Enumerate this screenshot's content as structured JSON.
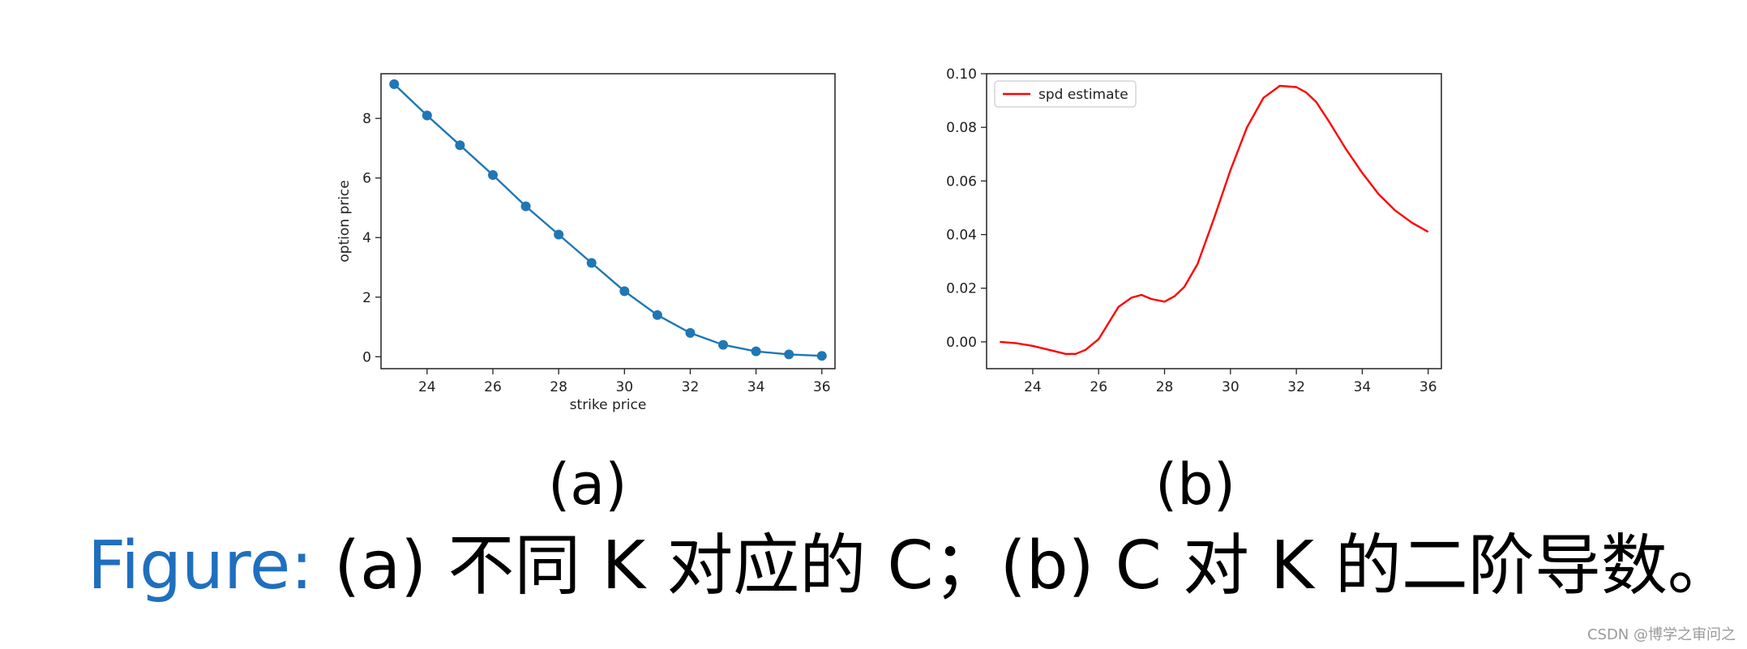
{
  "chart_data": [
    {
      "type": "line",
      "panel_label": "(a)",
      "title": "",
      "xlabel": "strike price",
      "ylabel": "option price",
      "xlim": [
        22.6,
        36.4
      ],
      "ylim": [
        -0.4,
        9.5
      ],
      "xticks": [
        24,
        26,
        28,
        30,
        32,
        34,
        36
      ],
      "yticks": [
        0,
        2,
        4,
        6,
        8
      ],
      "grid": false,
      "markers": true,
      "series": [
        {
          "color": "#1f77b4",
          "x": [
            23,
            24,
            25,
            26,
            27,
            28,
            29,
            30,
            31,
            32,
            33,
            34,
            35,
            36
          ],
          "y": [
            9.15,
            8.1,
            7.1,
            6.1,
            5.05,
            4.1,
            3.15,
            2.2,
            1.4,
            0.8,
            0.4,
            0.18,
            0.08,
            0.03
          ]
        }
      ]
    },
    {
      "type": "line",
      "panel_label": "(b)",
      "title": "",
      "xlabel": "",
      "ylabel": "",
      "xlim": [
        22.6,
        36.4
      ],
      "ylim": [
        -0.01,
        0.1
      ],
      "xticks": [
        24,
        26,
        28,
        30,
        32,
        34,
        36
      ],
      "yticks": [
        0.0,
        0.02,
        0.04,
        0.06,
        0.08,
        0.1
      ],
      "ytick_labels": [
        "0.00",
        "0.02",
        "0.04",
        "0.06",
        "0.08",
        "0.10"
      ],
      "grid": false,
      "markers": false,
      "legend": "top-left",
      "series": [
        {
          "name": "spd estimate",
          "color": "#ff0000",
          "x": [
            23,
            23.5,
            24,
            24.5,
            25,
            25.3,
            25.6,
            26,
            26.3,
            26.6,
            27,
            27.3,
            27.6,
            28,
            28.3,
            28.6,
            29,
            29.5,
            30,
            30.5,
            31,
            31.5,
            32,
            32.3,
            32.6,
            33,
            33.5,
            34,
            34.5,
            35,
            35.5,
            36
          ],
          "y": [
            0.0,
            -0.0005,
            -0.0015,
            -0.003,
            -0.0045,
            -0.0045,
            -0.003,
            0.001,
            0.007,
            0.013,
            0.0165,
            0.0175,
            0.016,
            0.015,
            0.017,
            0.0205,
            0.029,
            0.046,
            0.064,
            0.08,
            0.091,
            0.0955,
            0.095,
            0.093,
            0.0895,
            0.082,
            0.072,
            0.063,
            0.055,
            0.049,
            0.0445,
            0.041
          ]
        }
      ]
    }
  ],
  "caption": {
    "figure_label": "Figure:",
    "text": " (a) 不同 K 对应的 C；(b) C 对 K 的二阶导数。"
  },
  "watermark": "CSDN @博学之审问之"
}
